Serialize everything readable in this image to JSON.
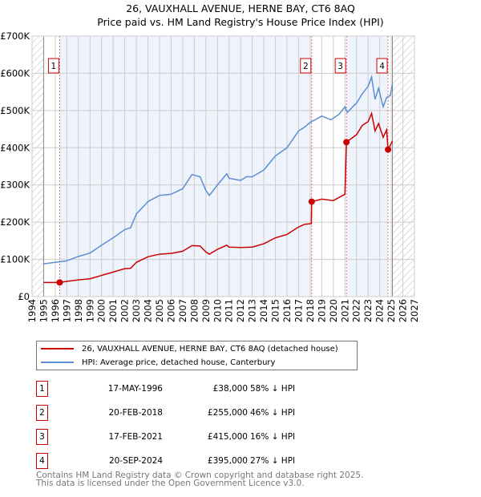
{
  "title": "26, VAUXHALL AVENUE, HERNE BAY, CT6 8AQ",
  "subtitle": "Price paid vs. HM Land Registry's House Price Index (HPI)",
  "colors": {
    "property": "#cc0000",
    "hpi": "#5b8fd4",
    "shade": "#eef3fc"
  },
  "chart_data": {
    "type": "line",
    "xlim": [
      1994,
      2027
    ],
    "ylim": [
      0,
      700000
    ],
    "yticks": [
      {
        "v": 0,
        "label": "£0"
      },
      {
        "v": 100000,
        "label": "£100K"
      },
      {
        "v": 200000,
        "label": "£200K"
      },
      {
        "v": 300000,
        "label": "£300K"
      },
      {
        "v": 400000,
        "label": "£400K"
      },
      {
        "v": 500000,
        "label": "£500K"
      },
      {
        "v": 600000,
        "label": "£600K"
      },
      {
        "v": 700000,
        "label": "£700K"
      }
    ],
    "xticks": [
      "1994",
      "1995",
      "1996",
      "1997",
      "1998",
      "1999",
      "2000",
      "2001",
      "2002",
      "2003",
      "2004",
      "2005",
      "2006",
      "2007",
      "2008",
      "2009",
      "2010",
      "2011",
      "2012",
      "2013",
      "2014",
      "2015",
      "2016",
      "2017",
      "2018",
      "2019",
      "2020",
      "2021",
      "2022",
      "2023",
      "2024",
      "2025",
      "2026",
      "2027"
    ],
    "series": [
      {
        "name": "26, VAUXHALL AVENUE, HERNE BAY, CT6 8AQ (detached house)",
        "points": [
          [
            1995,
            38000
          ],
          [
            1996.38,
            38000
          ],
          [
            1997,
            41000
          ],
          [
            1998,
            45000
          ],
          [
            1999,
            48000
          ],
          [
            2000,
            57000
          ],
          [
            2001,
            66000
          ],
          [
            2002,
            75000
          ],
          [
            2002.5,
            76000
          ],
          [
            2003,
            92000
          ],
          [
            2004,
            107000
          ],
          [
            2005,
            114000
          ],
          [
            2006,
            116000
          ],
          [
            2007,
            122000
          ],
          [
            2007.8,
            137000
          ],
          [
            2008.5,
            136000
          ],
          [
            2009,
            120000
          ],
          [
            2009.3,
            114000
          ],
          [
            2010,
            127000
          ],
          [
            2010.8,
            138000
          ],
          [
            2011,
            133000
          ],
          [
            2012,
            132000
          ],
          [
            2013,
            133000
          ],
          [
            2014,
            142000
          ],
          [
            2015,
            158000
          ],
          [
            2016,
            167000
          ],
          [
            2017,
            187000
          ],
          [
            2017.5,
            194000
          ],
          [
            2018.1,
            196000
          ],
          [
            2018.13,
            255000
          ],
          [
            2019,
            262000
          ],
          [
            2020,
            258000
          ],
          [
            2021,
            275000
          ],
          [
            2021.13,
            415000
          ],
          [
            2022,
            435000
          ],
          [
            2022.5,
            460000
          ],
          [
            2023,
            470000
          ],
          [
            2023.3,
            492000
          ],
          [
            2023.6,
            445000
          ],
          [
            2023.9,
            465000
          ],
          [
            2024.3,
            428000
          ],
          [
            2024.6,
            448000
          ],
          [
            2024.72,
            395000
          ],
          [
            2025.1,
            418000
          ]
        ]
      },
      {
        "name": "HPI: Average price, detached house, Canterbury",
        "points": [
          [
            1995,
            88000
          ],
          [
            1996,
            92000
          ],
          [
            1997,
            96000
          ],
          [
            1998,
            108000
          ],
          [
            1999,
            117000
          ],
          [
            2000,
            138000
          ],
          [
            2001,
            158000
          ],
          [
            2002,
            180000
          ],
          [
            2002.5,
            185000
          ],
          [
            2003,
            222000
          ],
          [
            2004,
            255000
          ],
          [
            2005,
            272000
          ],
          [
            2006,
            275000
          ],
          [
            2007,
            290000
          ],
          [
            2007.8,
            328000
          ],
          [
            2008.5,
            322000
          ],
          [
            2009,
            285000
          ],
          [
            2009.3,
            272000
          ],
          [
            2010,
            300000
          ],
          [
            2010.8,
            330000
          ],
          [
            2011,
            318000
          ],
          [
            2012,
            312000
          ],
          [
            2012.5,
            322000
          ],
          [
            2013,
            322000
          ],
          [
            2014,
            340000
          ],
          [
            2015,
            378000
          ],
          [
            2016,
            400000
          ],
          [
            2017,
            445000
          ],
          [
            2017.5,
            455000
          ],
          [
            2018,
            468000
          ],
          [
            2019,
            485000
          ],
          [
            2019.8,
            475000
          ],
          [
            2020.5,
            490000
          ],
          [
            2021,
            510000
          ],
          [
            2021.2,
            495000
          ],
          [
            2022,
            520000
          ],
          [
            2022.5,
            545000
          ],
          [
            2023,
            565000
          ],
          [
            2023.3,
            590000
          ],
          [
            2023.6,
            530000
          ],
          [
            2023.9,
            560000
          ],
          [
            2024.3,
            510000
          ],
          [
            2024.6,
            535000
          ],
          [
            2024.9,
            540000
          ],
          [
            2025.1,
            570000
          ]
        ]
      }
    ],
    "sales": [
      {
        "id": "1",
        "x": 1996.38,
        "y": 38000
      },
      {
        "id": "2",
        "x": 2018.13,
        "y": 255000
      },
      {
        "id": "3",
        "x": 2021.13,
        "y": 415000
      },
      {
        "id": "4",
        "x": 2024.72,
        "y": 395000
      }
    ],
    "shaded": [
      [
        1996.38,
        2018.13
      ],
      [
        2021.13,
        2024.72
      ]
    ],
    "hatched": [
      [
        1994,
        1995
      ],
      [
        2025.1,
        2027
      ]
    ]
  },
  "legend": {
    "property": "26, VAUXHALL AVENUE, HERNE BAY, CT6 8AQ (detached house)",
    "hpi": "HPI: Average price, detached house, Canterbury"
  },
  "transactions": [
    {
      "id": "1",
      "date": "17-MAY-1996",
      "price": "£38,000",
      "hpi": "58% ↓ HPI"
    },
    {
      "id": "2",
      "date": "20-FEB-2018",
      "price": "£255,000",
      "hpi": "46% ↓ HPI"
    },
    {
      "id": "3",
      "date": "17-FEB-2021",
      "price": "£415,000",
      "hpi": "16% ↓ HPI"
    },
    {
      "id": "4",
      "date": "20-SEP-2024",
      "price": "£395,000",
      "hpi": "27% ↓ HPI"
    }
  ],
  "footer": {
    "line1": "Contains HM Land Registry data © Crown copyright and database right 2025.",
    "line2": "This data is licensed under the Open Government Licence v3.0."
  }
}
